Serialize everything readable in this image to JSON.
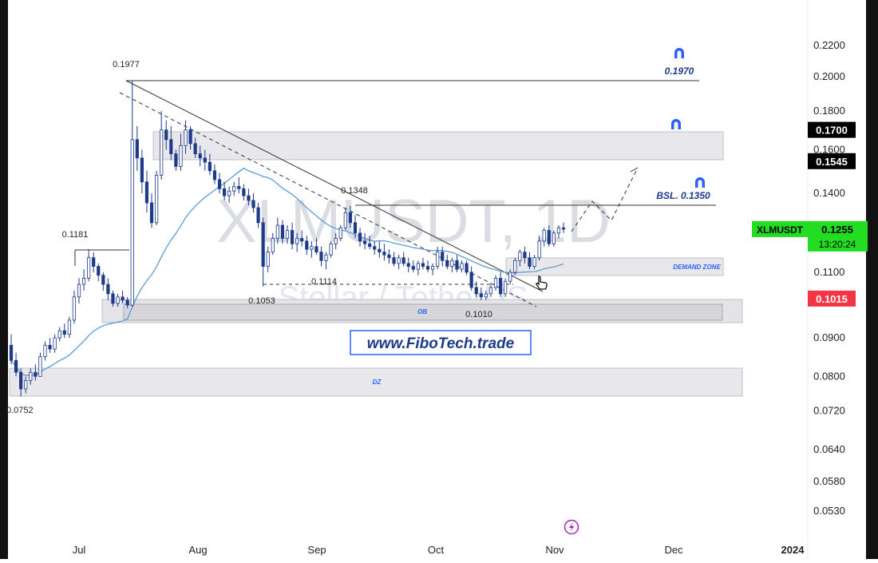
{
  "chart_data": {
    "type": "candlestick",
    "symbol": "XLMUSDT",
    "interval": "1D",
    "watermark_title": "XLMUSDT, 1D",
    "watermark_subtitle": "Stellar / TetherUS",
    "brand_text": "www.FiboTech.trade",
    "y_scale": "log",
    "ylim": [
      0.05,
      0.235
    ],
    "y_ticks": [
      "0.2200",
      "0.2000",
      "0.1800",
      "0.1600",
      "0.1400",
      "0.1100",
      "0.0900",
      "0.0800",
      "0.0720",
      "0.0640",
      "0.0580",
      "0.0530"
    ],
    "x_ticks": [
      "Jul",
      "Aug",
      "Sep",
      "Oct",
      "Nov",
      "Dec",
      "2024"
    ],
    "price_tags": [
      {
        "label": "0.1700",
        "value": 0.17,
        "color": "#000000"
      },
      {
        "label": "0.1545",
        "value": 0.1545,
        "color": "#000000"
      },
      {
        "label": "0.1015",
        "value": 0.1015,
        "color": "#f23645"
      }
    ],
    "last_price": {
      "symbol": "XLMUSDT",
      "price": "0.1255",
      "countdown": "13:20:24",
      "value": 0.1255,
      "color": "#22dd22"
    },
    "annotations": [
      {
        "text": "0.1977",
        "value": 0.1977
      },
      {
        "text": "0.1181",
        "value": 0.1181
      },
      {
        "text": "0.1348",
        "value": 0.1348
      },
      {
        "text": "0.1114",
        "value": 0.1114
      },
      {
        "text": "0.1053",
        "value": 0.1053
      },
      {
        "text": "0.1010",
        "value": 0.101
      },
      {
        "text": "0.0752",
        "value": 0.0752
      },
      {
        "text": "0.1970",
        "value": 0.197
      },
      {
        "text": "BSL. 0.1350",
        "value": 0.135
      }
    ],
    "zones": [
      {
        "label": "",
        "low": 0.1545,
        "high": 0.17
      },
      {
        "label": "DEMAND ZONE",
        "low": 0.1085,
        "high": 0.115
      },
      {
        "label": "OB",
        "low": 0.0965,
        "high": 0.1025
      },
      {
        "label": "DZ",
        "low": 0.0755,
        "high": 0.0825
      }
    ],
    "moving_average": {
      "color": "#5b9bd5"
    },
    "series": {
      "up_color": "#ffffff",
      "down_color": "#1e3a8a",
      "candles": [
        [
          0.088,
          0.091,
          0.083,
          0.084
        ],
        [
          0.084,
          0.086,
          0.08,
          0.081
        ],
        [
          0.081,
          0.082,
          0.0752,
          0.077
        ],
        [
          0.077,
          0.08,
          0.076,
          0.079
        ],
        [
          0.079,
          0.082,
          0.078,
          0.081
        ],
        [
          0.081,
          0.083,
          0.079,
          0.08
        ],
        [
          0.08,
          0.086,
          0.08,
          0.085
        ],
        [
          0.085,
          0.089,
          0.084,
          0.088
        ],
        [
          0.088,
          0.09,
          0.086,
          0.087
        ],
        [
          0.087,
          0.091,
          0.086,
          0.09
        ],
        [
          0.09,
          0.093,
          0.089,
          0.092
        ],
        [
          0.092,
          0.094,
          0.09,
          0.091
        ],
        [
          0.091,
          0.096,
          0.09,
          0.095
        ],
        [
          0.095,
          0.104,
          0.094,
          0.102
        ],
        [
          0.102,
          0.108,
          0.1,
          0.106
        ],
        [
          0.106,
          0.111,
          0.104,
          0.108
        ],
        [
          0.108,
          0.1181,
          0.107,
          0.115
        ],
        [
          0.115,
          0.117,
          0.11,
          0.112
        ],
        [
          0.112,
          0.113,
          0.107,
          0.109
        ],
        [
          0.109,
          0.11,
          0.104,
          0.106
        ],
        [
          0.106,
          0.108,
          0.101,
          0.103
        ],
        [
          0.103,
          0.104,
          0.099,
          0.1
        ],
        [
          0.1,
          0.103,
          0.099,
          0.102
        ],
        [
          0.102,
          0.104,
          0.1,
          0.101
        ],
        [
          0.101,
          0.102,
          0.0985,
          0.0995
        ],
        [
          0.0995,
          0.1977,
          0.099,
          0.165
        ],
        [
          0.165,
          0.172,
          0.15,
          0.156
        ],
        [
          0.156,
          0.16,
          0.14,
          0.145
        ],
        [
          0.145,
          0.15,
          0.132,
          0.136
        ],
        [
          0.136,
          0.14,
          0.126,
          0.128
        ],
        [
          0.128,
          0.15,
          0.127,
          0.148
        ],
        [
          0.148,
          0.18,
          0.146,
          0.17
        ],
        [
          0.17,
          0.175,
          0.16,
          0.165
        ],
        [
          0.165,
          0.172,
          0.155,
          0.158
        ],
        [
          0.158,
          0.16,
          0.15,
          0.152
        ],
        [
          0.152,
          0.168,
          0.15,
          0.162
        ],
        [
          0.162,
          0.175,
          0.158,
          0.17
        ],
        [
          0.17,
          0.172,
          0.16,
          0.163
        ],
        [
          0.163,
          0.166,
          0.156,
          0.158
        ],
        [
          0.158,
          0.162,
          0.152,
          0.156
        ],
        [
          0.156,
          0.16,
          0.15,
          0.154
        ],
        [
          0.154,
          0.158,
          0.148,
          0.15
        ],
        [
          0.15,
          0.153,
          0.144,
          0.146
        ],
        [
          0.146,
          0.149,
          0.14,
          0.142
        ],
        [
          0.142,
          0.145,
          0.137,
          0.139
        ],
        [
          0.139,
          0.143,
          0.136,
          0.141
        ],
        [
          0.141,
          0.145,
          0.139,
          0.143
        ],
        [
          0.143,
          0.147,
          0.14,
          0.142
        ],
        [
          0.142,
          0.144,
          0.137,
          0.139
        ],
        [
          0.139,
          0.142,
          0.135,
          0.137
        ],
        [
          0.137,
          0.14,
          0.132,
          0.134
        ],
        [
          0.134,
          0.136,
          0.126,
          0.128
        ],
        [
          0.128,
          0.13,
          0.1053,
          0.112
        ],
        [
          0.112,
          0.119,
          0.11,
          0.117
        ],
        [
          0.117,
          0.124,
          0.116,
          0.122
        ],
        [
          0.122,
          0.13,
          0.12,
          0.127
        ],
        [
          0.127,
          0.129,
          0.12,
          0.122
        ],
        [
          0.122,
          0.127,
          0.12,
          0.125
        ],
        [
          0.125,
          0.128,
          0.118,
          0.12
        ],
        [
          0.12,
          0.124,
          0.117,
          0.122
        ],
        [
          0.122,
          0.125,
          0.119,
          0.121
        ],
        [
          0.121,
          0.123,
          0.116,
          0.118
        ],
        [
          0.118,
          0.121,
          0.115,
          0.119
        ],
        [
          0.119,
          0.122,
          0.116,
          0.117
        ],
        [
          0.117,
          0.119,
          0.112,
          0.114
        ],
        [
          0.114,
          0.117,
          0.111,
          0.116
        ],
        [
          0.116,
          0.121,
          0.115,
          0.12
        ],
        [
          0.12,
          0.124,
          0.118,
          0.122
        ],
        [
          0.122,
          0.127,
          0.121,
          0.126
        ],
        [
          0.126,
          0.134,
          0.125,
          0.132
        ],
        [
          0.132,
          0.1348,
          0.126,
          0.128
        ],
        [
          0.128,
          0.131,
          0.122,
          0.124
        ],
        [
          0.124,
          0.126,
          0.119,
          0.121
        ],
        [
          0.121,
          0.124,
          0.118,
          0.12
        ],
        [
          0.12,
          0.123,
          0.118,
          0.119
        ],
        [
          0.119,
          0.121,
          0.116,
          0.118
        ],
        [
          0.118,
          0.121,
          0.115,
          0.117
        ],
        [
          0.117,
          0.12,
          0.114,
          0.116
        ],
        [
          0.116,
          0.118,
          0.113,
          0.115
        ],
        [
          0.115,
          0.117,
          0.112,
          0.113
        ],
        [
          0.113,
          0.116,
          0.111,
          0.115
        ],
        [
          0.115,
          0.117,
          0.112,
          0.113
        ],
        [
          0.113,
          0.115,
          0.11,
          0.112
        ],
        [
          0.112,
          0.114,
          0.11,
          0.111
        ],
        [
          0.111,
          0.114,
          0.109,
          0.113
        ],
        [
          0.113,
          0.115,
          0.111,
          0.112
        ],
        [
          0.112,
          0.114,
          0.11,
          0.111
        ],
        [
          0.111,
          0.113,
          0.109,
          0.112
        ],
        [
          0.112,
          0.119,
          0.111,
          0.117
        ],
        [
          0.117,
          0.119,
          0.112,
          0.114
        ],
        [
          0.114,
          0.116,
          0.111,
          0.112
        ],
        [
          0.112,
          0.115,
          0.11,
          0.114
        ],
        [
          0.114,
          0.116,
          0.11,
          0.111
        ],
        [
          0.111,
          0.114,
          0.11,
          0.113
        ],
        [
          0.113,
          0.114,
          0.109,
          0.11
        ],
        [
          0.11,
          0.112,
          0.104,
          0.105
        ],
        [
          0.105,
          0.107,
          0.102,
          0.103
        ],
        [
          0.103,
          0.105,
          0.101,
          0.102
        ],
        [
          0.102,
          0.104,
          0.101,
          0.103
        ],
        [
          0.103,
          0.106,
          0.102,
          0.105
        ],
        [
          0.105,
          0.109,
          0.104,
          0.108
        ],
        [
          0.108,
          0.11,
          0.102,
          0.103
        ],
        [
          0.103,
          0.108,
          0.102,
          0.107
        ],
        [
          0.107,
          0.111,
          0.106,
          0.11
        ],
        [
          0.11,
          0.115,
          0.109,
          0.114
        ],
        [
          0.114,
          0.118,
          0.112,
          0.117
        ],
        [
          0.117,
          0.119,
          0.113,
          0.115
        ],
        [
          0.115,
          0.117,
          0.111,
          0.112
        ],
        [
          0.112,
          0.116,
          0.111,
          0.115
        ],
        [
          0.115,
          0.123,
          0.114,
          0.121
        ],
        [
          0.121,
          0.126,
          0.119,
          0.125
        ],
        [
          0.125,
          0.127,
          0.119,
          0.12
        ],
        [
          0.12,
          0.125,
          0.119,
          0.124
        ],
        [
          0.124,
          0.127,
          0.122,
          0.126
        ],
        [
          0.126,
          0.128,
          0.124,
          0.1255
        ]
      ]
    }
  }
}
